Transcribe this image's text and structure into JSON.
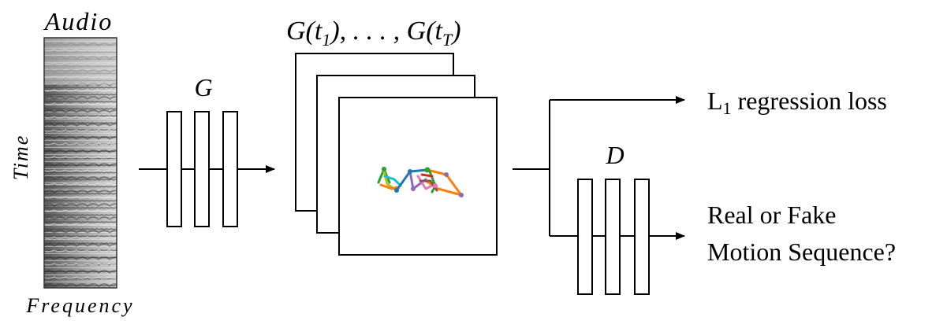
{
  "spectrogram": {
    "title": "Audio",
    "y_axis_label": "Time",
    "x_axis_label": "Frequency"
  },
  "generator": {
    "label": "G"
  },
  "frames": {
    "label_main": "G(t",
    "label_sub_first": "1",
    "label_mid": "), . . . , G(t",
    "label_sub_last": "T",
    "label_end": ")"
  },
  "discriminator": {
    "label": "D"
  },
  "outputs": {
    "regression_main": "L",
    "regression_sub": "1",
    "regression_rest": " regression loss",
    "adversarial_line1": "Real or Fake",
    "adversarial_line2": "Motion Sequence?"
  },
  "colors": {
    "stroke": "#000000",
    "pose_blue": "#1f77b4",
    "pose_orange": "#ff7f0e",
    "pose_green": "#2ca02c",
    "pose_purple": "#9467bd",
    "pose_pink": "#e377c2"
  }
}
